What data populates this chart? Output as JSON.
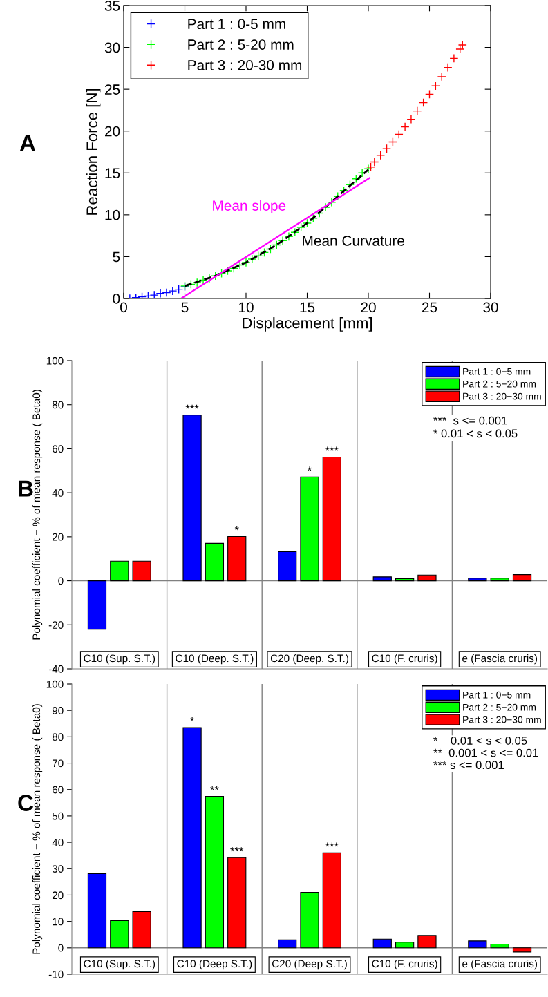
{
  "chart_data": [
    {
      "type": "scatter",
      "title": "A",
      "xlabel": "Displacement [mm]",
      "ylabel": "Reaction Force [N]",
      "xlim": [
        0,
        30
      ],
      "xticks": [
        0,
        5,
        10,
        15,
        20,
        25,
        30
      ],
      "ylim": [
        0,
        35
      ],
      "yticks": [
        0,
        5,
        10,
        15,
        20,
        25,
        30,
        35
      ],
      "grid": false,
      "legend": "top left",
      "series": [
        {
          "name": "Part 1 : 0-5 mm",
          "color": "#0000ff",
          "marker": "cross",
          "x": [
            0,
            0.5,
            1,
            1.5,
            2,
            2.5,
            3,
            3.5,
            4,
            4.5,
            5
          ],
          "values": [
            0,
            0,
            0.1,
            0.2,
            0.3,
            0.4,
            0.6,
            0.7,
            0.9,
            1.1,
            1.4
          ]
        },
        {
          "name": "Part 2 : 5-20 mm",
          "color": "#00ff00",
          "marker": "cross",
          "x": [
            5,
            5.5,
            6,
            6.5,
            7,
            7.5,
            8,
            8.5,
            9,
            9.5,
            10,
            10.5,
            11,
            11.5,
            12,
            12.5,
            13,
            13.5,
            14,
            14.5,
            15,
            15.5,
            16,
            16.5,
            17,
            17.5,
            18,
            18.5,
            19,
            19.5,
            20
          ],
          "values": [
            1.5,
            1.7,
            1.9,
            2.2,
            2.4,
            2.7,
            3.0,
            3.3,
            3.6,
            4.0,
            4.3,
            4.7,
            5.1,
            5.5,
            5.9,
            6.4,
            6.9,
            7.4,
            7.9,
            8.5,
            9.0,
            9.6,
            10.2,
            10.9,
            11.5,
            12.2,
            12.9,
            13.6,
            14.3,
            15.0,
            15.5
          ]
        },
        {
          "name": "Part 3 : 20-30 mm",
          "color": "#ff0000",
          "marker": "cross",
          "x": [
            20.2,
            20.5,
            21,
            21.5,
            22,
            22.5,
            23,
            23.5,
            24,
            24.5,
            25,
            25.5,
            26,
            26.5,
            27,
            27.5,
            27.7
          ],
          "values": [
            15.7,
            16.3,
            17.1,
            17.9,
            18.7,
            19.6,
            20.5,
            21.4,
            22.4,
            23.4,
            24.4,
            25.4,
            26.5,
            27.6,
            28.7,
            29.8,
            30.3
          ]
        },
        {
          "type": "line",
          "line_style": "dashed",
          "color": "#000000",
          "x": [
            5,
            7.5,
            10,
            12.5,
            15,
            17.5,
            20
          ],
          "values": [
            1.5,
            2.7,
            4.3,
            6.4,
            9.0,
            12.2,
            15.4
          ]
        },
        {
          "type": "line",
          "line_style": "solid",
          "color": "#ff00ff",
          "x": [
            4.7,
            20.1
          ],
          "values": [
            0,
            14.4
          ]
        }
      ],
      "annotations": [
        "Mean slope",
        "Mean Curvature"
      ]
    },
    {
      "type": "bar",
      "title": "B",
      "ylabel": "Polynomial coefficient − % of mean response ( Beta0)",
      "categories": [
        "C10 (Sup. S.T.)",
        "C10 (Deep. S.T.)",
        "C20 (Deep. S.T.)",
        "C10 (F. cruris)",
        "e (Fascia cruris)"
      ],
      "ylim": [
        -40,
        100
      ],
      "yticks": [
        -40,
        -20,
        0,
        20,
        40,
        60,
        80,
        100
      ],
      "grid": false,
      "legend": "top right",
      "series": [
        {
          "name": "Part 1 : 0−5 mm",
          "color": "#0000ff",
          "values": [
            -22,
            75.3,
            13.2,
            1.8,
            1.2
          ],
          "value_labels": [
            null,
            "***",
            null,
            null,
            null
          ]
        },
        {
          "name": "Part 2 : 5−20 mm",
          "color": "#00ff00",
          "values": [
            8.9,
            17,
            47.2,
            1.0,
            1.2
          ],
          "value_labels": [
            null,
            null,
            "*",
            null,
            null
          ]
        },
        {
          "name": "Part 3 : 20−30 mm",
          "color": "#ff0000",
          "values": [
            8.9,
            20.1,
            56.2,
            2.6,
            2.8
          ],
          "value_labels": [
            null,
            "*",
            "***",
            null,
            null
          ]
        }
      ],
      "ref_lines": [
        {
          "axis": "y",
          "value": 0,
          "color": "#808080"
        }
      ],
      "annotations": [
        "***  s <= 0.001",
        "* 0.01 < s < 0.05"
      ]
    },
    {
      "type": "bar",
      "title": "C",
      "ylabel": "Polynomial coefficient − % of mean response ( Beta0)",
      "categories": [
        "C10 (Sup. S.T.)",
        "C10 (Deep S.T.)",
        "C20 (Deep S.T.)",
        "C10 (F. cruris)",
        "e (Fascia cruris)"
      ],
      "ylim": [
        -10,
        100
      ],
      "yticks": [
        -10,
        0,
        10,
        20,
        30,
        40,
        50,
        60,
        70,
        80,
        90,
        100
      ],
      "grid": false,
      "legend": "top right",
      "series": [
        {
          "name": "Part 1 : 0−5 mm",
          "color": "#0000ff",
          "values": [
            28.1,
            83.5,
            3.0,
            3.3,
            2.6
          ],
          "value_labels": [
            null,
            "*",
            null,
            null,
            null
          ]
        },
        {
          "name": "Part 2 : 5−20 mm",
          "color": "#00ff00",
          "values": [
            10.3,
            57.4,
            21,
            2.1,
            1.4
          ],
          "value_labels": [
            null,
            "**",
            null,
            null,
            null
          ]
        },
        {
          "name": "Part 3 : 20−30 mm",
          "color": "#ff0000",
          "values": [
            13.7,
            34.2,
            36,
            4.7,
            -1.6
          ],
          "value_labels": [
            null,
            "***",
            "***",
            null,
            null
          ]
        }
      ],
      "ref_lines": [
        {
          "axis": "y",
          "value": 0,
          "color": "#808080"
        }
      ],
      "annotations": [
        "*    0.01 < s < 0.05",
        "**  0.001 < s <= 0.01",
        "*** s <= 0.001"
      ]
    }
  ]
}
